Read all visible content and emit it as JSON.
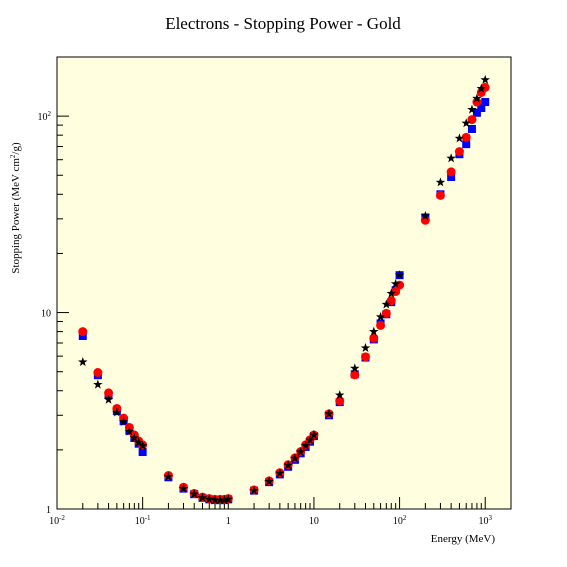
{
  "chart_data": {
    "type": "scatter",
    "title": "Electrons - Stopping Power - Gold",
    "xlabel": "Energy (MeV)",
    "ylabel_main": "Stopping Power (MeV cm",
    "ylabel_sup": "2",
    "ylabel_tail": "/g)",
    "xscale": "log",
    "yscale": "log",
    "xlim": [
      0.01,
      2000
    ],
    "ylim": [
      1,
      200
    ],
    "grid": false,
    "background": "#ffffe0",
    "x_tick_labels": [
      {
        "value": 0.01,
        "base": "10",
        "exp": "-2"
      },
      {
        "value": 0.1,
        "base": "10",
        "exp": "-1"
      },
      {
        "value": 1,
        "base": "1",
        "exp": ""
      },
      {
        "value": 10,
        "base": "10",
        "exp": ""
      },
      {
        "value": 100,
        "base": "10",
        "exp": "2"
      },
      {
        "value": 1000,
        "base": "10",
        "exp": "3"
      }
    ],
    "y_tick_labels": [
      {
        "value": 1,
        "base": "1",
        "exp": ""
      },
      {
        "value": 10,
        "base": "10",
        "exp": ""
      },
      {
        "value": 100,
        "base": "10",
        "exp": "2"
      }
    ],
    "series": [
      {
        "marker": "square",
        "color": "#0000ff",
        "x": [
          0.02,
          0.03,
          0.04,
          0.05,
          0.06,
          0.07,
          0.08,
          0.09,
          0.1,
          0.2,
          0.3,
          0.4,
          0.5,
          0.6,
          0.7,
          0.8,
          0.9,
          1,
          2,
          3,
          4,
          5,
          6,
          7,
          8,
          9,
          10,
          15,
          20,
          30,
          40,
          50,
          60,
          70,
          80,
          90,
          100,
          200,
          300,
          400,
          500,
          600,
          700,
          800,
          900,
          1000
        ],
        "y": [
          7.6,
          4.8,
          3.8,
          3.15,
          2.8,
          2.5,
          2.3,
          2.15,
          1.95,
          1.45,
          1.27,
          1.19,
          1.14,
          1.12,
          1.11,
          1.11,
          1.11,
          1.12,
          1.24,
          1.37,
          1.5,
          1.64,
          1.78,
          1.92,
          2.07,
          2.2,
          2.35,
          3.0,
          3.5,
          4.85,
          5.9,
          7.3,
          8.8,
          9.8,
          11.3,
          13.0,
          15.5,
          30.5,
          40,
          49,
          64,
          72,
          86,
          104,
          110,
          118
        ]
      },
      {
        "marker": "circle",
        "color": "#ff0000",
        "x": [
          0.02,
          0.03,
          0.04,
          0.05,
          0.06,
          0.07,
          0.08,
          0.09,
          0.1,
          0.2,
          0.3,
          0.4,
          0.5,
          0.6,
          0.7,
          0.8,
          0.9,
          1,
          2,
          3,
          4,
          5,
          6,
          7,
          8,
          9,
          10,
          15,
          20,
          30,
          40,
          50,
          60,
          70,
          80,
          90,
          100,
          200,
          300,
          400,
          500,
          600,
          700,
          800,
          900,
          1000
        ],
        "y": [
          8.0,
          4.95,
          3.9,
          3.25,
          2.9,
          2.6,
          2.38,
          2.22,
          2.12,
          1.48,
          1.29,
          1.2,
          1.15,
          1.13,
          1.12,
          1.12,
          1.12,
          1.13,
          1.25,
          1.39,
          1.53,
          1.68,
          1.82,
          1.96,
          2.12,
          2.25,
          2.38,
          3.05,
          3.55,
          4.82,
          5.95,
          7.4,
          8.6,
          9.9,
          11.5,
          12.8,
          13.8,
          29.5,
          39.5,
          52,
          66,
          78,
          96,
          118,
          132,
          140
        ]
      },
      {
        "marker": "star",
        "color": "#000000",
        "x": [
          0.02,
          0.03,
          0.04,
          0.05,
          0.06,
          0.07,
          0.08,
          0.09,
          0.1,
          0.2,
          0.3,
          0.4,
          0.5,
          0.6,
          0.7,
          0.8,
          0.9,
          1,
          2,
          3,
          4,
          5,
          6,
          7,
          8,
          9,
          10,
          15,
          20,
          30,
          40,
          50,
          60,
          70,
          80,
          90,
          100,
          200,
          300,
          400,
          500,
          600,
          700,
          800,
          900,
          1000
        ],
        "y": [
          5.6,
          4.3,
          3.6,
          3.1,
          2.78,
          2.48,
          2.3,
          2.18,
          2.1,
          1.46,
          1.27,
          1.19,
          1.14,
          1.12,
          1.11,
          1.11,
          1.11,
          1.12,
          1.24,
          1.38,
          1.52,
          1.67,
          1.81,
          1.95,
          2.1,
          2.24,
          2.38,
          3.05,
          3.8,
          5.2,
          6.6,
          8.0,
          9.5,
          11.0,
          12.5,
          14.0,
          15.5,
          31,
          46,
          61,
          77,
          92,
          108,
          123,
          138,
          153
        ]
      }
    ]
  }
}
